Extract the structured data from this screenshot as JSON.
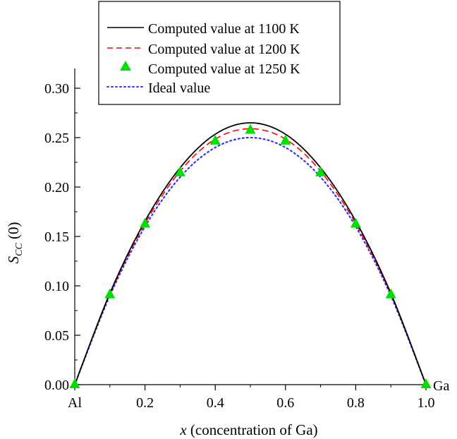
{
  "chart_data": {
    "type": "line",
    "title": "",
    "xlabel_var": "x",
    "xlabel_rest": " (concentration of Ga)",
    "ylabel_var": "S",
    "ylabel_sub": "CC",
    "ylabel_rest": " (0)",
    "x_end_labels": {
      "left": "Al",
      "right": "Ga"
    },
    "xlim": [
      0,
      1
    ],
    "ylim": [
      0,
      0.32
    ],
    "x_ticks": [
      {
        "value": 0,
        "label": "Al"
      },
      {
        "value": 0.2,
        "label": "0.2"
      },
      {
        "value": 0.4,
        "label": "0.4"
      },
      {
        "value": 0.6,
        "label": "0.6"
      },
      {
        "value": 0.8,
        "label": "0.8"
      },
      {
        "value": 1.0,
        "label": "1.0"
      }
    ],
    "y_ticks": [
      {
        "value": 0,
        "label": "0.00"
      },
      {
        "value": 0.05,
        "label": "0.05"
      },
      {
        "value": 0.1,
        "label": "0.10"
      },
      {
        "value": 0.15,
        "label": "0.15"
      },
      {
        "value": 0.2,
        "label": "0.20"
      },
      {
        "value": 0.25,
        "label": "0.25"
      },
      {
        "value": 0.3,
        "label": "0.30"
      }
    ],
    "grid": false,
    "legend_placement": "top-center",
    "x": [
      0,
      0.1,
      0.2,
      0.3,
      0.4,
      0.5,
      0.6,
      0.7,
      0.8,
      0.9,
      1.0
    ],
    "series": [
      {
        "name": "Computed value at 1100 K",
        "style": "solid",
        "color": "#000000",
        "values": [
          0,
          0.0925,
          0.1655,
          0.2195,
          0.2535,
          0.265,
          0.2535,
          0.2195,
          0.1655,
          0.0925,
          0
        ]
      },
      {
        "name": "Computed value at 1200 K",
        "style": "dashed",
        "color": "#ff0000",
        "values": [
          0,
          0.0915,
          0.163,
          0.216,
          0.2485,
          0.259,
          0.2485,
          0.216,
          0.163,
          0.0915,
          0
        ]
      },
      {
        "name": "Computed value at 1250 K",
        "style": "triangle-markers",
        "color": "#00e000",
        "values": [
          0,
          0.091,
          0.1625,
          0.2145,
          0.2465,
          0.2575,
          0.2465,
          0.2145,
          0.1625,
          0.091,
          0
        ]
      },
      {
        "name": "Ideal value",
        "style": "dotted",
        "color": "#3333ff",
        "values": [
          0,
          0.09,
          0.16,
          0.21,
          0.24,
          0.25,
          0.24,
          0.21,
          0.16,
          0.09,
          0
        ]
      }
    ]
  }
}
